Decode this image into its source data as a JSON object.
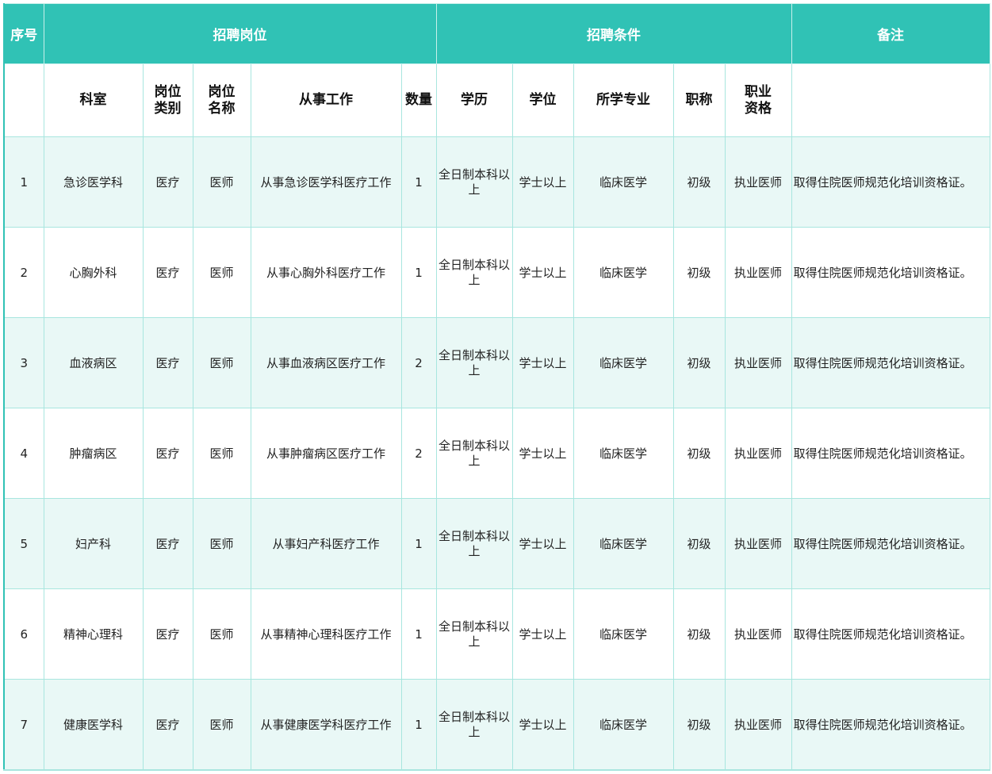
{
  "header": {
    "no": "序号",
    "position_group": "招聘岗位",
    "condition_group": "招聘条件",
    "remark": "备注"
  },
  "subheader": [
    "科室",
    "岗位类别",
    "岗位名称",
    "从事工作",
    "数量",
    "学历",
    "学位",
    "所学专业",
    "职称",
    "职业资格"
  ],
  "subheader_lines": {
    "c1": [
      "岗位",
      "类别"
    ],
    "c2": [
      "岗位",
      "名称"
    ],
    "c9": [
      "职业",
      "资格"
    ]
  },
  "rows": [
    {
      "no": "1",
      "dept": "急诊医学科",
      "type": "医疗",
      "name": "医师",
      "work": "从事急诊医学科医疗工作",
      "count": "1",
      "edu": "全日制本科以上",
      "degree": "学士以上",
      "major": "临床医学",
      "title": "初级",
      "qual": "执业医师",
      "remark": "取得住院医师规范化培训资格证。"
    },
    {
      "no": "2",
      "dept": "心胸外科",
      "type": "医疗",
      "name": "医师",
      "work": "从事心胸外科医疗工作",
      "count": "1",
      "edu": "全日制本科以上",
      "degree": "学士以上",
      "major": "临床医学",
      "title": "初级",
      "qual": "执业医师",
      "remark": "取得住院医师规范化培训资格证。"
    },
    {
      "no": "3",
      "dept": "血液病区",
      "type": "医疗",
      "name": "医师",
      "work": "从事血液病区医疗工作",
      "count": "2",
      "edu": "全日制本科以上",
      "degree": "学士以上",
      "major": "临床医学",
      "title": "初级",
      "qual": "执业医师",
      "remark": "取得住院医师规范化培训资格证。"
    },
    {
      "no": "4",
      "dept": "肿瘤病区",
      "type": "医疗",
      "name": "医师",
      "work": "从事肿瘤病区医疗工作",
      "count": "2",
      "edu": "全日制本科以上",
      "degree": "学士以上",
      "major": "临床医学",
      "title": "初级",
      "qual": "执业医师",
      "remark": "取得住院医师规范化培训资格证。"
    },
    {
      "no": "5",
      "dept": "妇产科",
      "type": "医疗",
      "name": "医师",
      "work": "从事妇产科医疗工作",
      "count": "1",
      "edu": "全日制本科以上",
      "degree": "学士以上",
      "major": "临床医学",
      "title": "初级",
      "qual": "执业医师",
      "remark": "取得住院医师规范化培训资格证。"
    },
    {
      "no": "6",
      "dept": "精神心理科",
      "type": "医疗",
      "name": "医师",
      "work": "从事精神心理科医疗工作",
      "count": "1",
      "edu": "全日制本科以上",
      "degree": "学士以上",
      "major": "临床医学",
      "title": "初级",
      "qual": "执业医师",
      "remark": "取得住院医师规范化培训资格证。"
    },
    {
      "no": "7",
      "dept": "健康医学科",
      "type": "医疗",
      "name": "医师",
      "work": "从事健康医学科医疗工作",
      "count": "1",
      "edu": "全日制本科以上",
      "degree": "学士以上",
      "major": "临床医学",
      "title": "初级",
      "qual": "执业医师",
      "remark": "取得住院医师规范化培训资格证。"
    }
  ],
  "colors": {
    "header_bg": "#30c2b5",
    "stripe": "#e9f8f6",
    "grid": "#a8e6df"
  }
}
